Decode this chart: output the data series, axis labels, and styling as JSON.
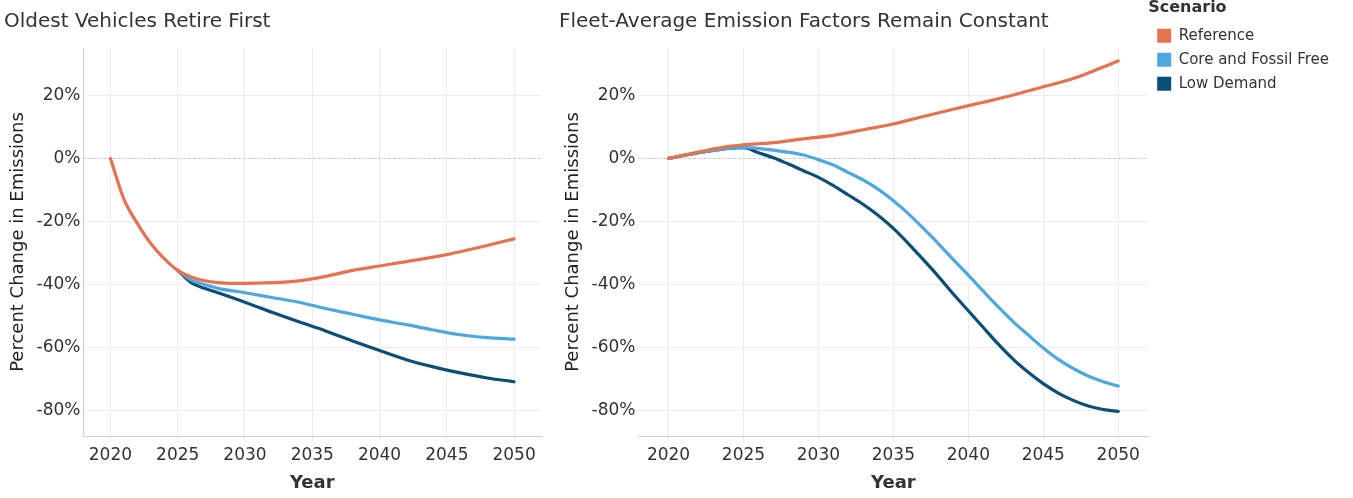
{
  "chart_data": [
    {
      "type": "line",
      "title": "Oldest Vehicles Retire First",
      "xlabel": "Year",
      "ylabel": "Percent Change in Emissions",
      "xlim": [
        2018,
        2052
      ],
      "xticks": [
        2020,
        2025,
        2030,
        2035,
        2040,
        2045,
        2050
      ],
      "ylim": [
        -88,
        35
      ],
      "yticks": [
        {
          "value": 20,
          "label": "20%"
        },
        {
          "value": 0,
          "label": "0%"
        },
        {
          "value": -20,
          "label": "-20%"
        },
        {
          "value": -40,
          "label": "-40%"
        },
        {
          "value": -60,
          "label": "-60%"
        },
        {
          "value": -80,
          "label": "-80%"
        }
      ],
      "grid": true,
      "legend": false,
      "marker": "none",
      "line_style": "solid",
      "ref_lines": [
        {
          "axis": "y",
          "value": 0,
          "color": "#bbbbbb",
          "line_style": "dotted"
        }
      ],
      "series": [
        {
          "color": "#e8714f",
          "x": [
            2020,
            2021,
            2022,
            2023,
            2024,
            2025,
            2026,
            2027,
            2028,
            2029,
            2030,
            2032,
            2034,
            2036,
            2038,
            2040,
            2042,
            2044,
            2046,
            2048,
            2050
          ],
          "values": [
            0,
            -12.9,
            -20.6,
            -27,
            -31.8,
            -35.5,
            -37.6,
            -38.8,
            -39.4,
            -39.6,
            -39.6,
            -39.4,
            -38.8,
            -37.4,
            -35.5,
            -34.1,
            -32.7,
            -31.3,
            -29.6,
            -27.6,
            -25.5
          ]
        },
        {
          "color": "#4ea8e0",
          "x": [
            2025,
            2026,
            2027,
            2028,
            2030,
            2032,
            2034,
            2036,
            2038,
            2040,
            2042,
            2044,
            2046,
            2048,
            2050
          ],
          "values": [
            -35.5,
            -38.6,
            -40,
            -41.2,
            -42.6,
            -44.1,
            -45.6,
            -47.6,
            -49.4,
            -51.2,
            -52.7,
            -54.4,
            -55.9,
            -56.8,
            -57.3
          ]
        },
        {
          "color": "#0b4f78",
          "x": [
            2025,
            2026,
            2027,
            2028,
            2030,
            2032,
            2034,
            2036,
            2038,
            2040,
            2042,
            2044,
            2046,
            2048,
            2050
          ],
          "values": [
            -35.5,
            -39.4,
            -41.2,
            -42.6,
            -45.6,
            -48.8,
            -51.8,
            -54.7,
            -57.9,
            -60.9,
            -63.8,
            -66.1,
            -68,
            -69.6,
            -70.8
          ]
        }
      ]
    },
    {
      "type": "line",
      "title": "Fleet-Average Emission Factors Remain Constant",
      "xlabel": "Year",
      "ylabel": "Percent Change in Emissions",
      "legend_title": "Scenario",
      "xlim": [
        2018,
        2052
      ],
      "xticks": [
        2020,
        2025,
        2030,
        2035,
        2040,
        2045,
        2050
      ],
      "ylim": [
        -88,
        35
      ],
      "yticks": [
        {
          "value": 20,
          "label": "20%"
        },
        {
          "value": 0,
          "label": "0%"
        },
        {
          "value": -20,
          "label": "-20%"
        },
        {
          "value": -40,
          "label": "-40%"
        },
        {
          "value": -60,
          "label": "-60%"
        },
        {
          "value": -80,
          "label": "-80%"
        }
      ],
      "grid": true,
      "legend": "right",
      "marker": "none",
      "line_style": "solid",
      "ref_lines": [
        {
          "axis": "y",
          "value": 0,
          "color": "#bbbbbb",
          "line_style": "dotted"
        }
      ],
      "series": [
        {
          "name": "Reference",
          "color": "#e8714f",
          "x": [
            2020,
            2022,
            2024,
            2025,
            2027,
            2029,
            2031,
            2033,
            2035,
            2037,
            2039,
            2041,
            2043,
            2045,
            2047,
            2050
          ],
          "values": [
            0,
            2,
            3.8,
            4.3,
            5,
            6.2,
            7.3,
            9.1,
            10.9,
            13.3,
            15.6,
            17.8,
            20.1,
            22.7,
            25.3,
            30.9
          ]
        },
        {
          "name": "Core and Fossil Free",
          "color": "#4ea8e0",
          "x": [
            2020,
            2022,
            2024,
            2025,
            2027,
            2029,
            2030,
            2031,
            2032,
            2033,
            2034,
            2035,
            2036,
            2037,
            2038,
            2039,
            2040,
            2041,
            2042,
            2043,
            2044,
            2045,
            2046,
            2047,
            2048,
            2049,
            2050
          ],
          "values": [
            0,
            1.8,
            3.2,
            3.4,
            2.6,
            1.1,
            -0.4,
            -2.1,
            -4.5,
            -6.9,
            -9.8,
            -13.4,
            -17.5,
            -22.2,
            -27,
            -32.1,
            -37,
            -42.1,
            -47.1,
            -51.8,
            -56,
            -60.1,
            -63.7,
            -66.6,
            -69,
            -70.8,
            -72.2
          ]
        },
        {
          "name": "Low Demand",
          "color": "#0b4f78",
          "x": [
            2020,
            2022,
            2024,
            2025,
            2026,
            2027,
            2028,
            2029,
            2030,
            2031,
            2032,
            2033,
            2034,
            2035,
            2036,
            2037,
            2038,
            2039,
            2040,
            2041,
            2042,
            2043,
            2044,
            2045,
            2046,
            2047,
            2048,
            2049,
            2050
          ],
          "values": [
            0,
            1.8,
            3.2,
            3.4,
            1.8,
            0.2,
            -1.8,
            -3.9,
            -6,
            -8.6,
            -11.6,
            -14.6,
            -18.1,
            -22.2,
            -27,
            -32.1,
            -37.4,
            -43,
            -48.3,
            -53.6,
            -58.9,
            -63.7,
            -67.8,
            -71.4,
            -74.4,
            -76.7,
            -78.5,
            -79.6,
            -80.2
          ]
        }
      ]
    }
  ]
}
